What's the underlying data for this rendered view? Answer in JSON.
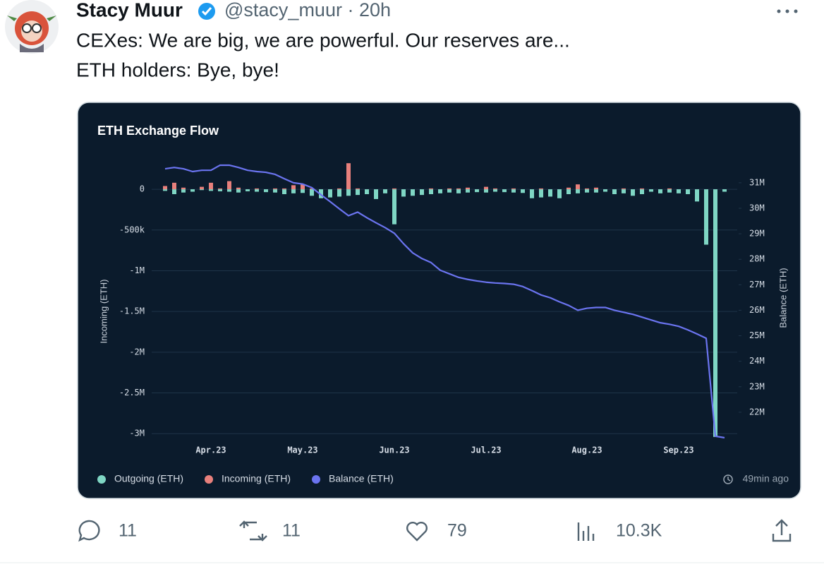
{
  "tweet": {
    "name": "Stacy Muur",
    "meta": "@stacy_muur · 20h",
    "lines": [
      "CEXes: We are big, we are powerful. Our reserves are...",
      "ETH holders: Bye, bye!"
    ],
    "replies": 11,
    "retweets": 11,
    "likes": 79,
    "views": "10.3K"
  },
  "chart_data": {
    "type": "bar-line",
    "title": "ETH Exchange Flow",
    "ylabel": "Incoming (ETH)",
    "y2label": "Balance (ETH)",
    "footnote": "49min ago",
    "categories": [
      null,
      null,
      null,
      null,
      null,
      "Apr.23",
      null,
      null,
      null,
      null,
      null,
      null,
      null,
      null,
      null,
      "May.23",
      null,
      null,
      null,
      null,
      null,
      null,
      null,
      null,
      null,
      "Jun.23",
      null,
      null,
      null,
      null,
      null,
      null,
      null,
      null,
      null,
      "Jul.23",
      null,
      null,
      null,
      null,
      null,
      null,
      null,
      null,
      null,
      null,
      "Aug.23",
      null,
      null,
      null,
      null,
      null,
      null,
      null,
      null,
      null,
      "Sep.23",
      null,
      null,
      null,
      null,
      null
    ],
    "series": [
      {
        "name": "Outgoing (ETH)",
        "color": "#7fd6c4",
        "values": [
          -20000,
          -60000,
          -40000,
          -30000,
          -10000,
          -20000,
          -25000,
          -30000,
          -40000,
          -25000,
          -30000,
          -35000,
          -40000,
          -60000,
          -50000,
          -45000,
          -80000,
          -110000,
          -100000,
          -90000,
          -80000,
          -70000,
          -60000,
          -120000,
          -50000,
          -430000,
          -90000,
          -80000,
          -70000,
          -60000,
          -50000,
          -40000,
          -50000,
          -40000,
          -35000,
          -40000,
          -30000,
          -35000,
          -40000,
          -45000,
          -110000,
          -100000,
          -90000,
          -110000,
          -60000,
          -50000,
          -40000,
          -40000,
          -30000,
          -60000,
          -50000,
          -80000,
          -60000,
          -30000,
          -50000,
          -40000,
          -50000,
          -60000,
          -150000,
          -680000,
          -3040000,
          -30000
        ]
      },
      {
        "name": "Incoming (ETH)",
        "color": "#e8807c",
        "values": [
          40000,
          80000,
          20000,
          0,
          30000,
          80000,
          10000,
          100000,
          20000,
          0,
          10000,
          0,
          10000,
          10000,
          50000,
          60000,
          10000,
          0,
          0,
          10000,
          320000,
          10000,
          0,
          0,
          0,
          10000,
          0,
          0,
          0,
          10000,
          0,
          10000,
          10000,
          20000,
          0,
          30000,
          10000,
          0,
          10000,
          0,
          0,
          10000,
          0,
          0,
          20000,
          60000,
          10000,
          20000,
          0,
          0,
          10000,
          0,
          10000,
          0,
          0,
          10000,
          0,
          0,
          0,
          0,
          0,
          0
        ]
      },
      {
        "name": "Balance (ETH)",
        "color": "#6b74f0",
        "axis": "y2",
        "values": [
          31550000,
          31600000,
          31550000,
          31440000,
          31490000,
          31490000,
          31690000,
          31690000,
          31600000,
          31490000,
          31440000,
          31410000,
          31330000,
          31160000,
          31000000,
          30950000,
          30810000,
          30530000,
          30260000,
          29980000,
          29710000,
          29850000,
          29630000,
          29430000,
          29240000,
          29020000,
          28610000,
          28250000,
          28030000,
          27870000,
          27570000,
          27430000,
          27290000,
          27210000,
          27150000,
          27100000,
          27070000,
          27050000,
          27020000,
          26930000,
          26770000,
          26600000,
          26490000,
          26330000,
          26190000,
          26000000,
          26080000,
          26110000,
          26110000,
          26000000,
          25920000,
          25840000,
          25730000,
          25620000,
          25510000,
          25450000,
          25370000,
          25230000,
          25070000,
          24900000,
          21060000,
          21000000
        ]
      }
    ],
    "ylim": [
      -3050000,
      330000
    ],
    "yticks": [
      0,
      {
        "value": -500000,
        "label": "-500k"
      },
      {
        "value": -1000000,
        "label": "-1M"
      },
      {
        "value": -1500000,
        "label": "-1.5M"
      },
      {
        "value": -2000000,
        "label": "-2M"
      },
      {
        "value": -2500000,
        "label": "-2.5M"
      },
      {
        "value": -3000000,
        "label": "-3M"
      }
    ],
    "y2lim": [
      21000000,
      31800000
    ],
    "y2ticks": [
      {
        "value": 22000000,
        "label": "22M"
      },
      {
        "value": 23000000,
        "label": "23M"
      },
      {
        "value": 24000000,
        "label": "24M"
      },
      {
        "value": 25000000,
        "label": "25M"
      },
      {
        "value": 26000000,
        "label": "26M"
      },
      {
        "value": 27000000,
        "label": "27M"
      },
      {
        "value": 28000000,
        "label": "28M"
      },
      {
        "value": 29000000,
        "label": "29M"
      },
      {
        "value": 30000000,
        "label": "30M"
      },
      {
        "value": 31000000,
        "label": "31M"
      }
    ],
    "grid": true,
    "legend": "bottom-left"
  }
}
